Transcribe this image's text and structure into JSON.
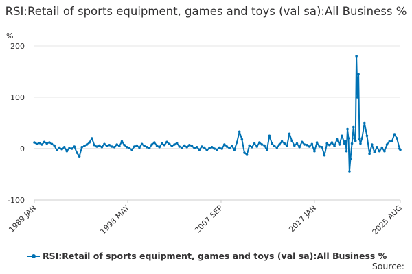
{
  "chart_data": {
    "type": "line",
    "title": "RSI:Retail of sports equipment, games and toys (val sa):All Business %",
    "ylabel": "%",
    "xlabel": "",
    "ylim": [
      -100,
      200
    ],
    "yticks": [
      -100,
      0,
      100,
      200
    ],
    "xlim": [
      1989.0,
      2025.583
    ],
    "xtick_labels": [
      "1989 JAN",
      "1998 MAY",
      "2007 SEP",
      "2017 JAN",
      "2025 AUG"
    ],
    "xtick_values": [
      1989.0,
      1998.333,
      2007.667,
      2017.0,
      2025.583
    ],
    "grid": true,
    "legend_position": "bottom",
    "color": "#0071B3",
    "series": [
      {
        "name": "RSI:Retail of sports equipment, games and toys (val sa):All Business %",
        "x": [
          1989.0,
          1989.25,
          1989.5,
          1989.75,
          1990.0,
          1990.25,
          1990.5,
          1990.75,
          1991.0,
          1991.25,
          1991.5,
          1991.75,
          1992.0,
          1992.25,
          1992.5,
          1992.75,
          1993.0,
          1993.25,
          1993.5,
          1993.75,
          1994.0,
          1994.25,
          1994.5,
          1994.75,
          1995.0,
          1995.25,
          1995.5,
          1995.75,
          1996.0,
          1996.25,
          1996.5,
          1996.75,
          1997.0,
          1997.25,
          1997.5,
          1997.75,
          1998.0,
          1998.25,
          1998.5,
          1998.75,
          1999.0,
          1999.25,
          1999.5,
          1999.75,
          2000.0,
          2000.25,
          2000.5,
          2000.75,
          2001.0,
          2001.25,
          2001.5,
          2001.75,
          2002.0,
          2002.25,
          2002.5,
          2002.75,
          2003.0,
          2003.25,
          2003.5,
          2003.75,
          2004.0,
          2004.25,
          2004.5,
          2004.75,
          2005.0,
          2005.25,
          2005.5,
          2005.75,
          2006.0,
          2006.25,
          2006.5,
          2006.75,
          2007.0,
          2007.25,
          2007.5,
          2007.75,
          2008.0,
          2008.25,
          2008.5,
          2008.75,
          2009.0,
          2009.25,
          2009.5,
          2009.75,
          2010.0,
          2010.25,
          2010.5,
          2010.75,
          2011.0,
          2011.25,
          2011.5,
          2011.75,
          2012.0,
          2012.25,
          2012.5,
          2012.75,
          2013.0,
          2013.25,
          2013.5,
          2013.75,
          2014.0,
          2014.25,
          2014.5,
          2014.75,
          2015.0,
          2015.25,
          2015.5,
          2015.75,
          2016.0,
          2016.25,
          2016.5,
          2016.75,
          2017.0,
          2017.25,
          2017.5,
          2017.75,
          2018.0,
          2018.25,
          2018.5,
          2018.75,
          2019.0,
          2019.25,
          2019.5,
          2019.75,
          2020.0,
          2020.1,
          2020.2,
          2020.3,
          2020.4,
          2020.5,
          2020.6,
          2020.75,
          2020.9,
          2021.0,
          2021.1,
          2021.2,
          2021.3,
          2021.4,
          2021.5,
          2021.6,
          2021.75,
          2022.0,
          2022.25,
          2022.5,
          2022.75,
          2023.0,
          2023.25,
          2023.5,
          2023.75,
          2024.0,
          2024.25,
          2024.5,
          2024.75,
          2025.0,
          2025.25,
          2025.5,
          2025.583
        ],
        "values": [
          12,
          9,
          11,
          8,
          13,
          10,
          12,
          9,
          6,
          -3,
          2,
          -1,
          3,
          -5,
          1,
          0,
          4,
          -8,
          -15,
          3,
          5,
          8,
          12,
          20,
          7,
          4,
          6,
          3,
          9,
          5,
          7,
          4,
          3,
          8,
          5,
          14,
          7,
          3,
          1,
          -2,
          4,
          6,
          2,
          9,
          5,
          3,
          1,
          8,
          12,
          6,
          3,
          10,
          7,
          13,
          9,
          5,
          8,
          11,
          4,
          2,
          6,
          3,
          7,
          5,
          1,
          3,
          -2,
          4,
          2,
          -3,
          1,
          3,
          0,
          -2,
          2,
          0,
          8,
          4,
          1,
          5,
          -2,
          12,
          33,
          18,
          -8,
          -12,
          6,
          3,
          10,
          4,
          12,
          8,
          6,
          -3,
          25,
          10,
          5,
          2,
          8,
          14,
          10,
          5,
          29,
          15,
          6,
          10,
          3,
          13,
          8,
          7,
          4,
          9,
          -5,
          12,
          4,
          3,
          -13,
          10,
          7,
          12,
          5,
          18,
          8,
          25,
          10,
          15,
          -5,
          38,
          20,
          -44,
          -20,
          10,
          42,
          20,
          15,
          180,
          100,
          145,
          18,
          10,
          20,
          50,
          25,
          -10,
          8,
          -7,
          3,
          -5,
          2,
          -5,
          8,
          14,
          15,
          28,
          20,
          0,
          -2
        ]
      }
    ]
  },
  "footer": {
    "source_label": "Source:"
  }
}
